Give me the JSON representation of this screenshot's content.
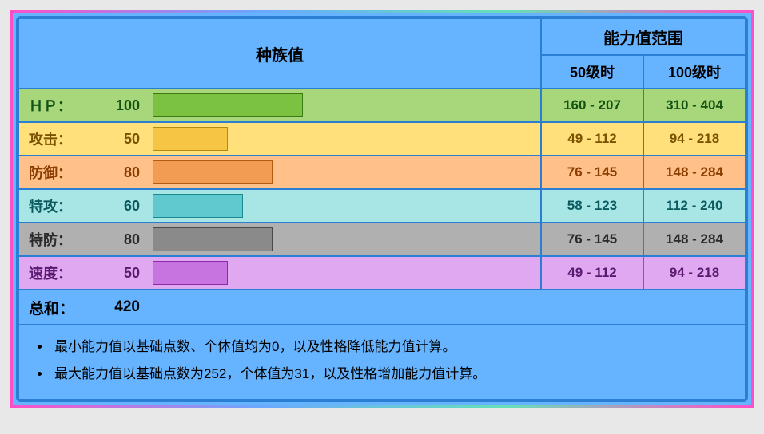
{
  "border_gradient": "linear-gradient(90deg,#ff4fc6,#6aa8ff,#66e0b8,#ff4fc6)",
  "header": {
    "base_stats": "种族值",
    "range_title": "能力值范围",
    "lv50": "50级时",
    "lv100": "100级时"
  },
  "max_stat_for_bar": 255,
  "stats": [
    {
      "label": "ＨＰ：",
      "value": 100,
      "row_bg": "#a8d67a",
      "bar_fill": "#7cc242",
      "bar_border": "#3d7a12",
      "text_color": "#145214",
      "lv50": "160 - 207",
      "lv100": "310 - 404"
    },
    {
      "label": "攻击：",
      "value": 50,
      "row_bg": "#ffe07a",
      "bar_fill": "#f7c544",
      "bar_border": "#b58a10",
      "text_color": "#7a5200",
      "lv50": "49 - 112",
      "lv100": "94 - 218"
    },
    {
      "label": "防御：",
      "value": 80,
      "row_bg": "#ffc08a",
      "bar_fill": "#f29b52",
      "bar_border": "#b55a10",
      "text_color": "#8a3d00",
      "lv50": "76 - 145",
      "lv100": "148 - 284"
    },
    {
      "label": "特攻：",
      "value": 60,
      "row_bg": "#a8e6e6",
      "bar_fill": "#5fc9cf",
      "bar_border": "#1a8a8f",
      "text_color": "#0a5a5f",
      "lv50": "58 - 123",
      "lv100": "112 - 240"
    },
    {
      "label": "特防：",
      "value": 80,
      "row_bg": "#b0b0b0",
      "bar_fill": "#8a8a8a",
      "bar_border": "#4a4a4a",
      "text_color": "#2a2a2a",
      "lv50": "76 - 145",
      "lv100": "148 - 284"
    },
    {
      "label": "速度：",
      "value": 50,
      "row_bg": "#e0a8f0",
      "bar_fill": "#c773e0",
      "bar_border": "#8a2aa8",
      "text_color": "#5a1a70",
      "lv50": "49 - 112",
      "lv100": "94 - 218"
    }
  ],
  "total": {
    "label": "总和：",
    "value": 420
  },
  "notes": [
    "最小能力值以基础点数、个体值均为0，以及性格降低能力值计算。",
    "最大能力值以基础点数为252，个体值为31，以及性格增加能力值计算。"
  ]
}
